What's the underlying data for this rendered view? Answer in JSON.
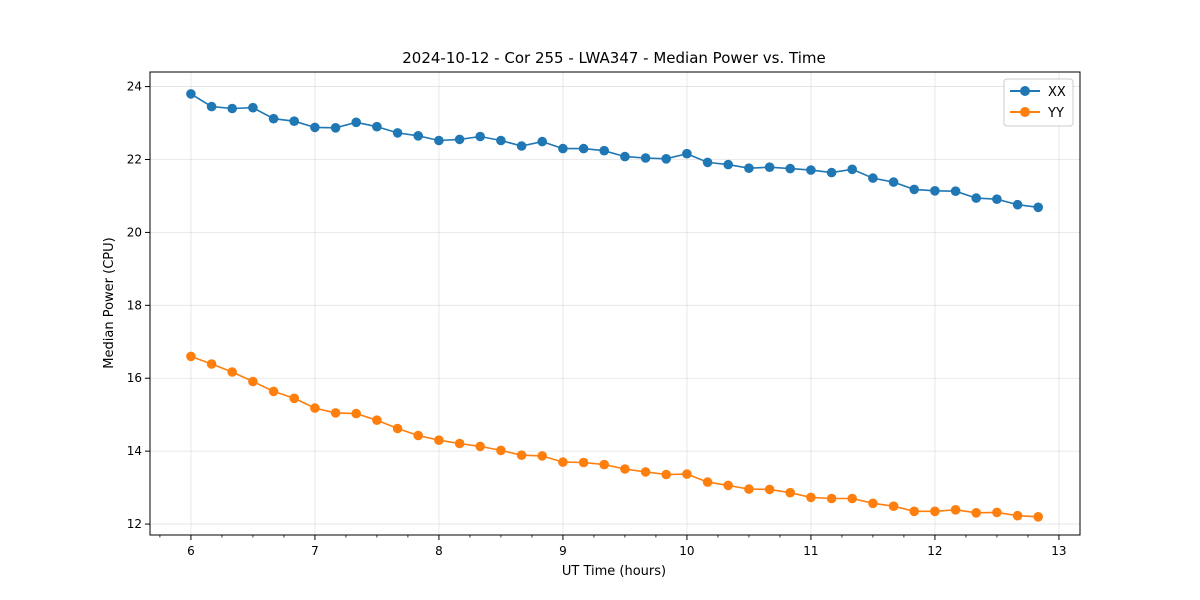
{
  "chart_data": {
    "type": "line",
    "title": "2024-10-12 - Cor 255 - LWA347 - Median Power vs. Time",
    "xlabel": "UT Time (hours)",
    "ylabel": "Median Power (CPU)",
    "xlim": [
      5.67,
      13.17
    ],
    "ylim": [
      11.7,
      24.4
    ],
    "xticks": [
      6,
      7,
      8,
      9,
      10,
      11,
      12,
      13
    ],
    "yticks": [
      12,
      14,
      16,
      18,
      20,
      22,
      24
    ],
    "grid": true,
    "legend_position": "top-right",
    "x": [
      6.0,
      6.167,
      6.333,
      6.5,
      6.667,
      6.833,
      7.0,
      7.167,
      7.333,
      7.5,
      7.667,
      7.833,
      8.0,
      8.167,
      8.333,
      8.5,
      8.667,
      8.833,
      9.0,
      9.167,
      9.333,
      9.5,
      9.667,
      9.833,
      10.0,
      10.167,
      10.333,
      10.5,
      10.667,
      10.833,
      11.0,
      11.167,
      11.333,
      11.5,
      11.667,
      11.833,
      12.0,
      12.167,
      12.333,
      12.5,
      12.667,
      12.833
    ],
    "series": [
      {
        "name": "XX",
        "color": "#1f77b4",
        "values": [
          23.8,
          23.45,
          23.4,
          23.42,
          23.12,
          23.05,
          22.88,
          22.87,
          23.02,
          22.9,
          22.73,
          22.65,
          22.52,
          22.55,
          22.63,
          22.52,
          22.37,
          22.49,
          22.3,
          22.3,
          22.24,
          22.08,
          22.04,
          22.02,
          22.16,
          21.92,
          21.86,
          21.76,
          21.79,
          21.75,
          21.71,
          21.64,
          21.73,
          21.49,
          21.38,
          21.18,
          21.14,
          21.13,
          20.94,
          20.91,
          20.76,
          20.69
        ]
      },
      {
        "name": "YY",
        "color": "#ff7f0e",
        "values": [
          16.6,
          16.39,
          16.17,
          15.91,
          15.64,
          15.45,
          15.18,
          15.05,
          15.03,
          14.85,
          14.62,
          14.43,
          14.3,
          14.21,
          14.13,
          14.02,
          13.89,
          13.87,
          13.7,
          13.69,
          13.63,
          13.51,
          13.43,
          13.36,
          13.37,
          13.15,
          13.06,
          12.96,
          12.95,
          12.86,
          12.73,
          12.7,
          12.7,
          12.57,
          12.49,
          12.35,
          12.35,
          12.39,
          12.31,
          12.32,
          12.23,
          12.2
        ]
      }
    ]
  }
}
